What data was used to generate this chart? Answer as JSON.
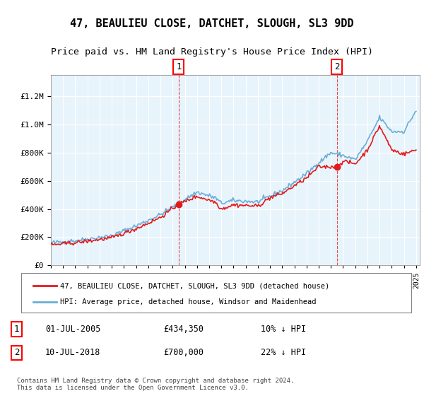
{
  "title": "47, BEAULIEU CLOSE, DATCHET, SLOUGH, SL3 9DD",
  "subtitle": "Price paid vs. HM Land Registry's House Price Index (HPI)",
  "hpi_label": "HPI: Average price, detached house, Windsor and Maidenhead",
  "price_label": "47, BEAULIEU CLOSE, DATCHET, SLOUGH, SL3 9DD (detached house)",
  "copyright": "Contains HM Land Registry data © Crown copyright and database right 2024.\nThis data is licensed under the Open Government Licence v3.0.",
  "sale1_date": "01-JUL-2005",
  "sale1_price": "£434,350",
  "sale1_note": "10% ↓ HPI",
  "sale2_date": "10-JUL-2018",
  "sale2_price": "£700,000",
  "sale2_note": "22% ↓ HPI",
  "hpi_color": "#6baed6",
  "price_color": "#e31a1c",
  "dashed_color": "#e31a1c",
  "ylim_max": 1350000,
  "ylim_min": 0,
  "background_color": "#e8f4fb"
}
